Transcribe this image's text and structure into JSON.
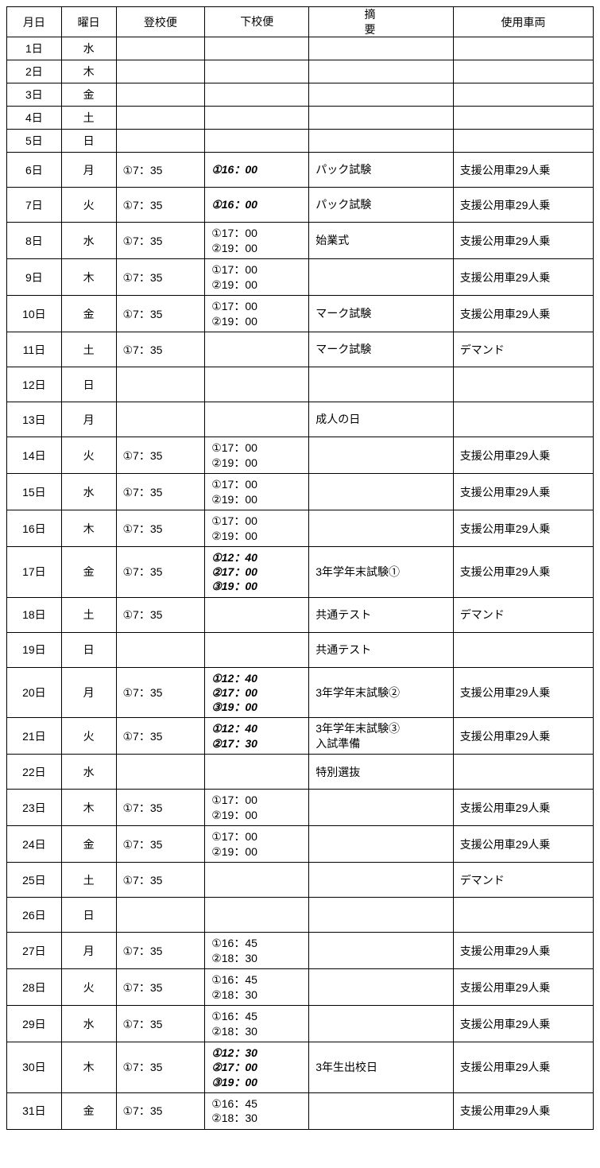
{
  "columns": [
    "月日",
    "曜日",
    "登校便",
    "下校便",
    "摘　　　要",
    "使用車両"
  ],
  "rows": [
    {
      "date": "1日",
      "day": "水",
      "arr": "",
      "dep": "",
      "note": "",
      "veh": "",
      "size": "small",
      "depItalic": false
    },
    {
      "date": "2日",
      "day": "木",
      "arr": "",
      "dep": "",
      "note": "",
      "veh": "",
      "size": "small",
      "depItalic": false
    },
    {
      "date": "3日",
      "day": "金",
      "arr": "",
      "dep": "",
      "note": "",
      "veh": "",
      "size": "small",
      "depItalic": false
    },
    {
      "date": "4日",
      "day": "土",
      "arr": "",
      "dep": "",
      "note": "",
      "veh": "",
      "size": "small",
      "depItalic": false
    },
    {
      "date": "5日",
      "day": "日",
      "arr": "",
      "dep": "",
      "note": "",
      "veh": "",
      "size": "small",
      "depItalic": false
    },
    {
      "date": "6日",
      "day": "月",
      "arr": "①7：35",
      "dep": "①16：00",
      "note": "パック試験",
      "veh": "支援公用車29人乗",
      "size": "med",
      "depItalic": true
    },
    {
      "date": "7日",
      "day": "火",
      "arr": "①7：35",
      "dep": "①16：00",
      "note": "パック試験",
      "veh": "支援公用車29人乗",
      "size": "med",
      "depItalic": true
    },
    {
      "date": "8日",
      "day": "水",
      "arr": "①7：35",
      "dep": "①17：00\n②19：00",
      "note": "始業式",
      "veh": "支援公用車29人乗",
      "size": "lg",
      "depItalic": false
    },
    {
      "date": "9日",
      "day": "木",
      "arr": "①7：35",
      "dep": "①17：00\n②19：00",
      "note": "",
      "veh": "支援公用車29人乗",
      "size": "lg",
      "depItalic": false
    },
    {
      "date": "10日",
      "day": "金",
      "arr": "①7：35",
      "dep": "①17：00\n②19：00",
      "note": "マーク試験",
      "veh": "支援公用車29人乗",
      "size": "lg",
      "depItalic": false
    },
    {
      "date": "11日",
      "day": "土",
      "arr": "①7：35",
      "dep": "",
      "note": "マーク試験",
      "veh": "デマンド",
      "size": "med",
      "depItalic": false
    },
    {
      "date": "12日",
      "day": "日",
      "arr": "",
      "dep": "",
      "note": "",
      "veh": "",
      "size": "med",
      "depItalic": false
    },
    {
      "date": "13日",
      "day": "月",
      "arr": "",
      "dep": "",
      "note": "成人の日",
      "veh": "",
      "size": "med",
      "depItalic": false
    },
    {
      "date": "14日",
      "day": "火",
      "arr": "①7：35",
      "dep": "①17：00\n②19：00",
      "note": "",
      "veh": "支援公用車29人乗",
      "size": "lg",
      "depItalic": false
    },
    {
      "date": "15日",
      "day": "水",
      "arr": "①7：35",
      "dep": "①17：00\n②19：00",
      "note": "",
      "veh": "支援公用車29人乗",
      "size": "lg",
      "depItalic": false
    },
    {
      "date": "16日",
      "day": "木",
      "arr": "①7：35",
      "dep": "①17：00\n②19：00",
      "note": "",
      "veh": "支援公用車29人乗",
      "size": "lg",
      "depItalic": false
    },
    {
      "date": "17日",
      "day": "金",
      "arr": "①7：35",
      "dep": "①12：40\n②17：00\n③19：00",
      "note": "3年学年末試験①",
      "veh": "支援公用車29人乗",
      "size": "xl",
      "depItalic": true
    },
    {
      "date": "18日",
      "day": "土",
      "arr": "①7：35",
      "dep": "",
      "note": "共通テスト",
      "veh": "デマンド",
      "size": "med",
      "depItalic": false
    },
    {
      "date": "19日",
      "day": "日",
      "arr": "",
      "dep": "",
      "note": "共通テスト",
      "veh": "",
      "size": "med",
      "depItalic": false
    },
    {
      "date": "20日",
      "day": "月",
      "arr": "①7：35",
      "dep": "①12：40\n②17：00\n③19：00",
      "note": "3年学年末試験②",
      "veh": "支援公用車29人乗",
      "size": "xl",
      "depItalic": true
    },
    {
      "date": "21日",
      "day": "火",
      "arr": "①7：35",
      "dep": "①12：40\n②17：30",
      "note": "3年学年末試験③\n入試準備",
      "veh": "支援公用車29人乗",
      "size": "lg",
      "depItalic": true
    },
    {
      "date": "22日",
      "day": "水",
      "arr": "",
      "dep": "",
      "note": "特別選抜",
      "veh": "",
      "size": "med",
      "depItalic": false
    },
    {
      "date": "23日",
      "day": "木",
      "arr": "①7：35",
      "dep": "①17：00\n②19：00",
      "note": "",
      "veh": "支援公用車29人乗",
      "size": "lg",
      "depItalic": false
    },
    {
      "date": "24日",
      "day": "金",
      "arr": "①7：35",
      "dep": "①17：00\n②19：00",
      "note": "",
      "veh": "支援公用車29人乗",
      "size": "lg",
      "depItalic": false
    },
    {
      "date": "25日",
      "day": "土",
      "arr": "①7：35",
      "dep": "",
      "note": "",
      "veh": "デマンド",
      "size": "med",
      "depItalic": false
    },
    {
      "date": "26日",
      "day": "日",
      "arr": "",
      "dep": "",
      "note": "",
      "veh": "",
      "size": "med",
      "depItalic": false
    },
    {
      "date": "27日",
      "day": "月",
      "arr": "①7：35",
      "dep": "①16：45\n②18：30",
      "note": "",
      "veh": "支援公用車29人乗",
      "size": "lg",
      "depItalic": false
    },
    {
      "date": "28日",
      "day": "火",
      "arr": "①7：35",
      "dep": "①16：45\n②18：30",
      "note": "",
      "veh": "支援公用車29人乗",
      "size": "lg",
      "depItalic": false
    },
    {
      "date": "29日",
      "day": "水",
      "arr": "①7：35",
      "dep": "①16：45\n②18：30",
      "note": "",
      "veh": "支援公用車29人乗",
      "size": "lg",
      "depItalic": false
    },
    {
      "date": "30日",
      "day": "木",
      "arr": "①7：35",
      "dep": "①12：30\n②17：00\n③19：00",
      "note": "3年生出校日",
      "veh": "支援公用車29人乗",
      "size": "xl",
      "depItalic": true
    },
    {
      "date": "31日",
      "day": "金",
      "arr": "①7：35",
      "dep": "①16：45\n②18：30",
      "note": "",
      "veh": "支援公用車29人乗",
      "size": "lg",
      "depItalic": false
    }
  ]
}
